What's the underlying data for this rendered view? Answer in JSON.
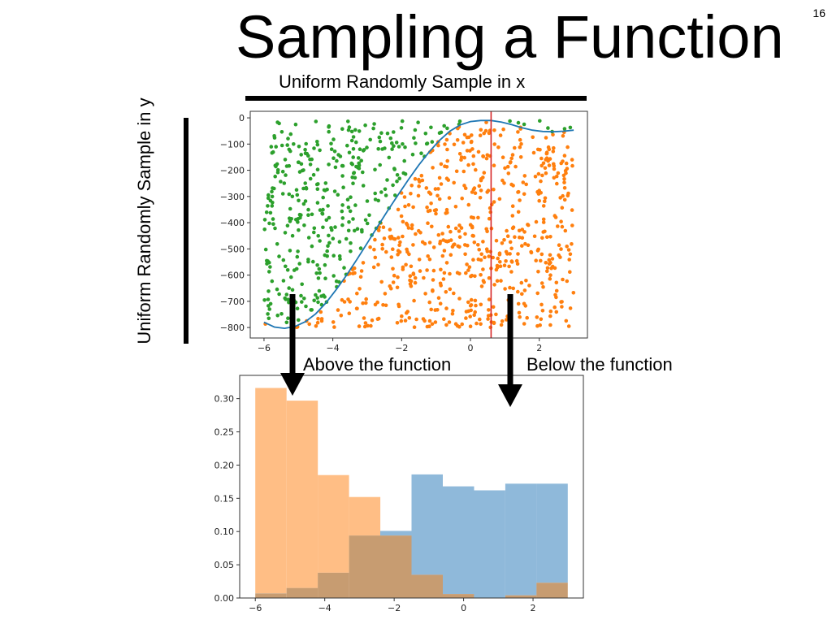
{
  "slide": {
    "title": "Sampling a Function",
    "number": "16",
    "x_caption": "Uniform Randomly Sample in x",
    "y_caption": "Uniform Randomly Sample in y",
    "label_above": "Above the function",
    "label_below": "Below the function"
  },
  "colors": {
    "above_points": "#2ca02c",
    "below_points": "#ff7f0e",
    "curve": "#1f77b4",
    "vertical_line": "#d62728",
    "hist_above": "#ffbe85",
    "hist_below": "#8fb9da",
    "hist_overlap": "#c79c71"
  },
  "chart_data": [
    {
      "type": "scatter",
      "xlim": [
        -6.4,
        3.4
      ],
      "ylim": [
        -840,
        25
      ],
      "x_ticks": [
        -6,
        -4,
        -2,
        0,
        2
      ],
      "y_ticks": [
        0,
        -100,
        -200,
        -300,
        -400,
        -500,
        -600,
        -700,
        -800
      ],
      "tick_labels_x": [
        "−6",
        "−4",
        "−2",
        "0",
        "2"
      ],
      "tick_labels_y": [
        "0",
        "−100",
        "−200",
        "−300",
        "−400",
        "−500",
        "−600",
        "−700",
        "−800"
      ],
      "curve_points": [
        [
          -6,
          -780
        ],
        [
          -5.7,
          -798
        ],
        [
          -5.4,
          -803
        ],
        [
          -5.1,
          -796
        ],
        [
          -4.8,
          -778
        ],
        [
          -4.5,
          -748
        ],
        [
          -4.2,
          -706
        ],
        [
          -3.9,
          -655
        ],
        [
          -3.6,
          -600
        ],
        [
          -3.3,
          -540
        ],
        [
          -3.0,
          -478
        ],
        [
          -2.7,
          -415
        ],
        [
          -2.4,
          -353
        ],
        [
          -2.1,
          -293
        ],
        [
          -1.8,
          -235
        ],
        [
          -1.5,
          -180
        ],
        [
          -1.2,
          -130
        ],
        [
          -0.9,
          -86
        ],
        [
          -0.6,
          -51
        ],
        [
          -0.3,
          -27
        ],
        [
          0,
          -14
        ],
        [
          0.3,
          -10
        ],
        [
          0.6,
          -10
        ],
        [
          0.9,
          -16
        ],
        [
          1.2,
          -26
        ],
        [
          1.5,
          -38
        ],
        [
          1.8,
          -47
        ],
        [
          2.1,
          -52
        ],
        [
          2.4,
          -53
        ],
        [
          2.7,
          -51
        ],
        [
          3.0,
          -47
        ]
      ],
      "vertical_line_x": 0.6,
      "sample_count": 1000,
      "x_range": [
        -6,
        3
      ],
      "y_range": [
        -800,
        -10
      ]
    },
    {
      "type": "bar",
      "xlim": [
        -6.45,
        3.45
      ],
      "ylim": [
        0,
        0.335
      ],
      "x_ticks": [
        -6,
        -4,
        -2,
        0,
        2
      ],
      "y_ticks": [
        0.0,
        0.05,
        0.1,
        0.15,
        0.2,
        0.25,
        0.3
      ],
      "tick_labels_x": [
        "−6",
        "−4",
        "−2",
        "0",
        "2"
      ],
      "tick_labels_y": [
        "0.00",
        "0.05",
        "0.10",
        "0.15",
        "0.20",
        "0.25",
        "0.30"
      ],
      "bin_edges": [
        -6.0,
        -5.1,
        -4.2,
        -3.3,
        -2.4,
        -1.5,
        -0.6,
        0.3,
        1.2,
        2.1,
        3.0
      ],
      "series": [
        {
          "values": [
            0.316,
            0.297,
            0.185,
            0.152,
            0.094,
            0.035,
            0.006,
            0.0,
            0.004,
            0.023
          ]
        },
        {
          "values": [
            0.007,
            0.015,
            0.038,
            0.094,
            0.101,
            0.186,
            0.168,
            0.162,
            0.172,
            0.172
          ]
        }
      ]
    }
  ]
}
